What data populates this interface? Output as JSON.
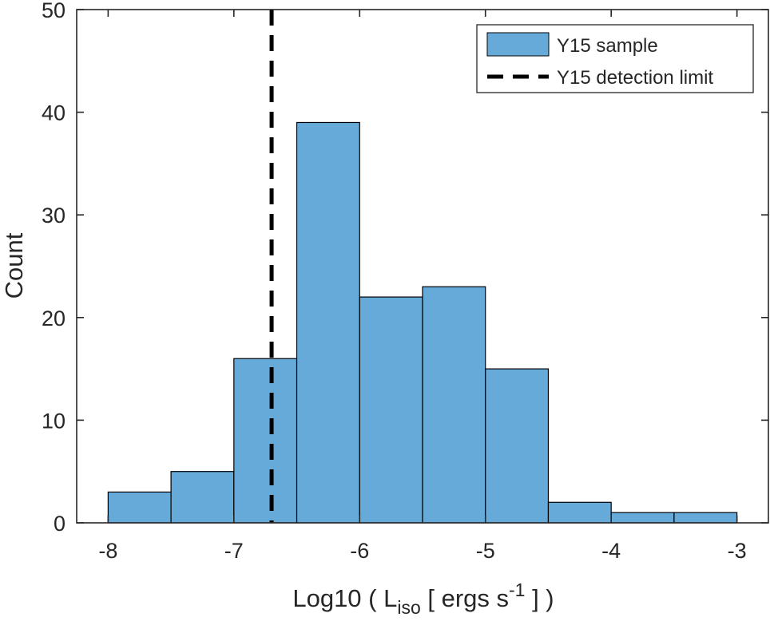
{
  "chart_data": {
    "type": "bar",
    "subtype": "histogram",
    "bin_edges": [
      -8,
      -7.5,
      -7,
      -6.5,
      -6,
      -5.5,
      -5,
      -4.5,
      -4,
      -3.5,
      -3
    ],
    "values": [
      3,
      5,
      16,
      39,
      22,
      23,
      15,
      2,
      1,
      1
    ],
    "xlim": [
      -8.25,
      -2.75
    ],
    "ylim": [
      0,
      50
    ],
    "xticks": [
      -8,
      -7,
      -6,
      -5,
      -4,
      -3
    ],
    "xtick_labels": [
      "-8",
      "-7",
      "-6",
      "-5",
      "-4",
      "-3"
    ],
    "yticks": [
      0,
      10,
      20,
      30,
      40,
      50
    ],
    "ytick_labels": [
      "0",
      "10",
      "20",
      "30",
      "40",
      "50"
    ],
    "xlabel": {
      "prefix": "Log10 ( L",
      "subscript": "iso",
      "middle": " [ ergs s",
      "superscript": "-1",
      "suffix": " ] )"
    },
    "ylabel": "Count",
    "detection_limit_x": -6.7,
    "bar_color": "#66AADA",
    "bar_edge_color": "#000000",
    "line_color": "#000000",
    "grid": false,
    "legend": {
      "placement": "top-right",
      "entries": [
        {
          "label": "Y15 sample",
          "kind": "patch"
        },
        {
          "label": "Y15 detection limit",
          "kind": "dashed-line"
        }
      ]
    }
  }
}
